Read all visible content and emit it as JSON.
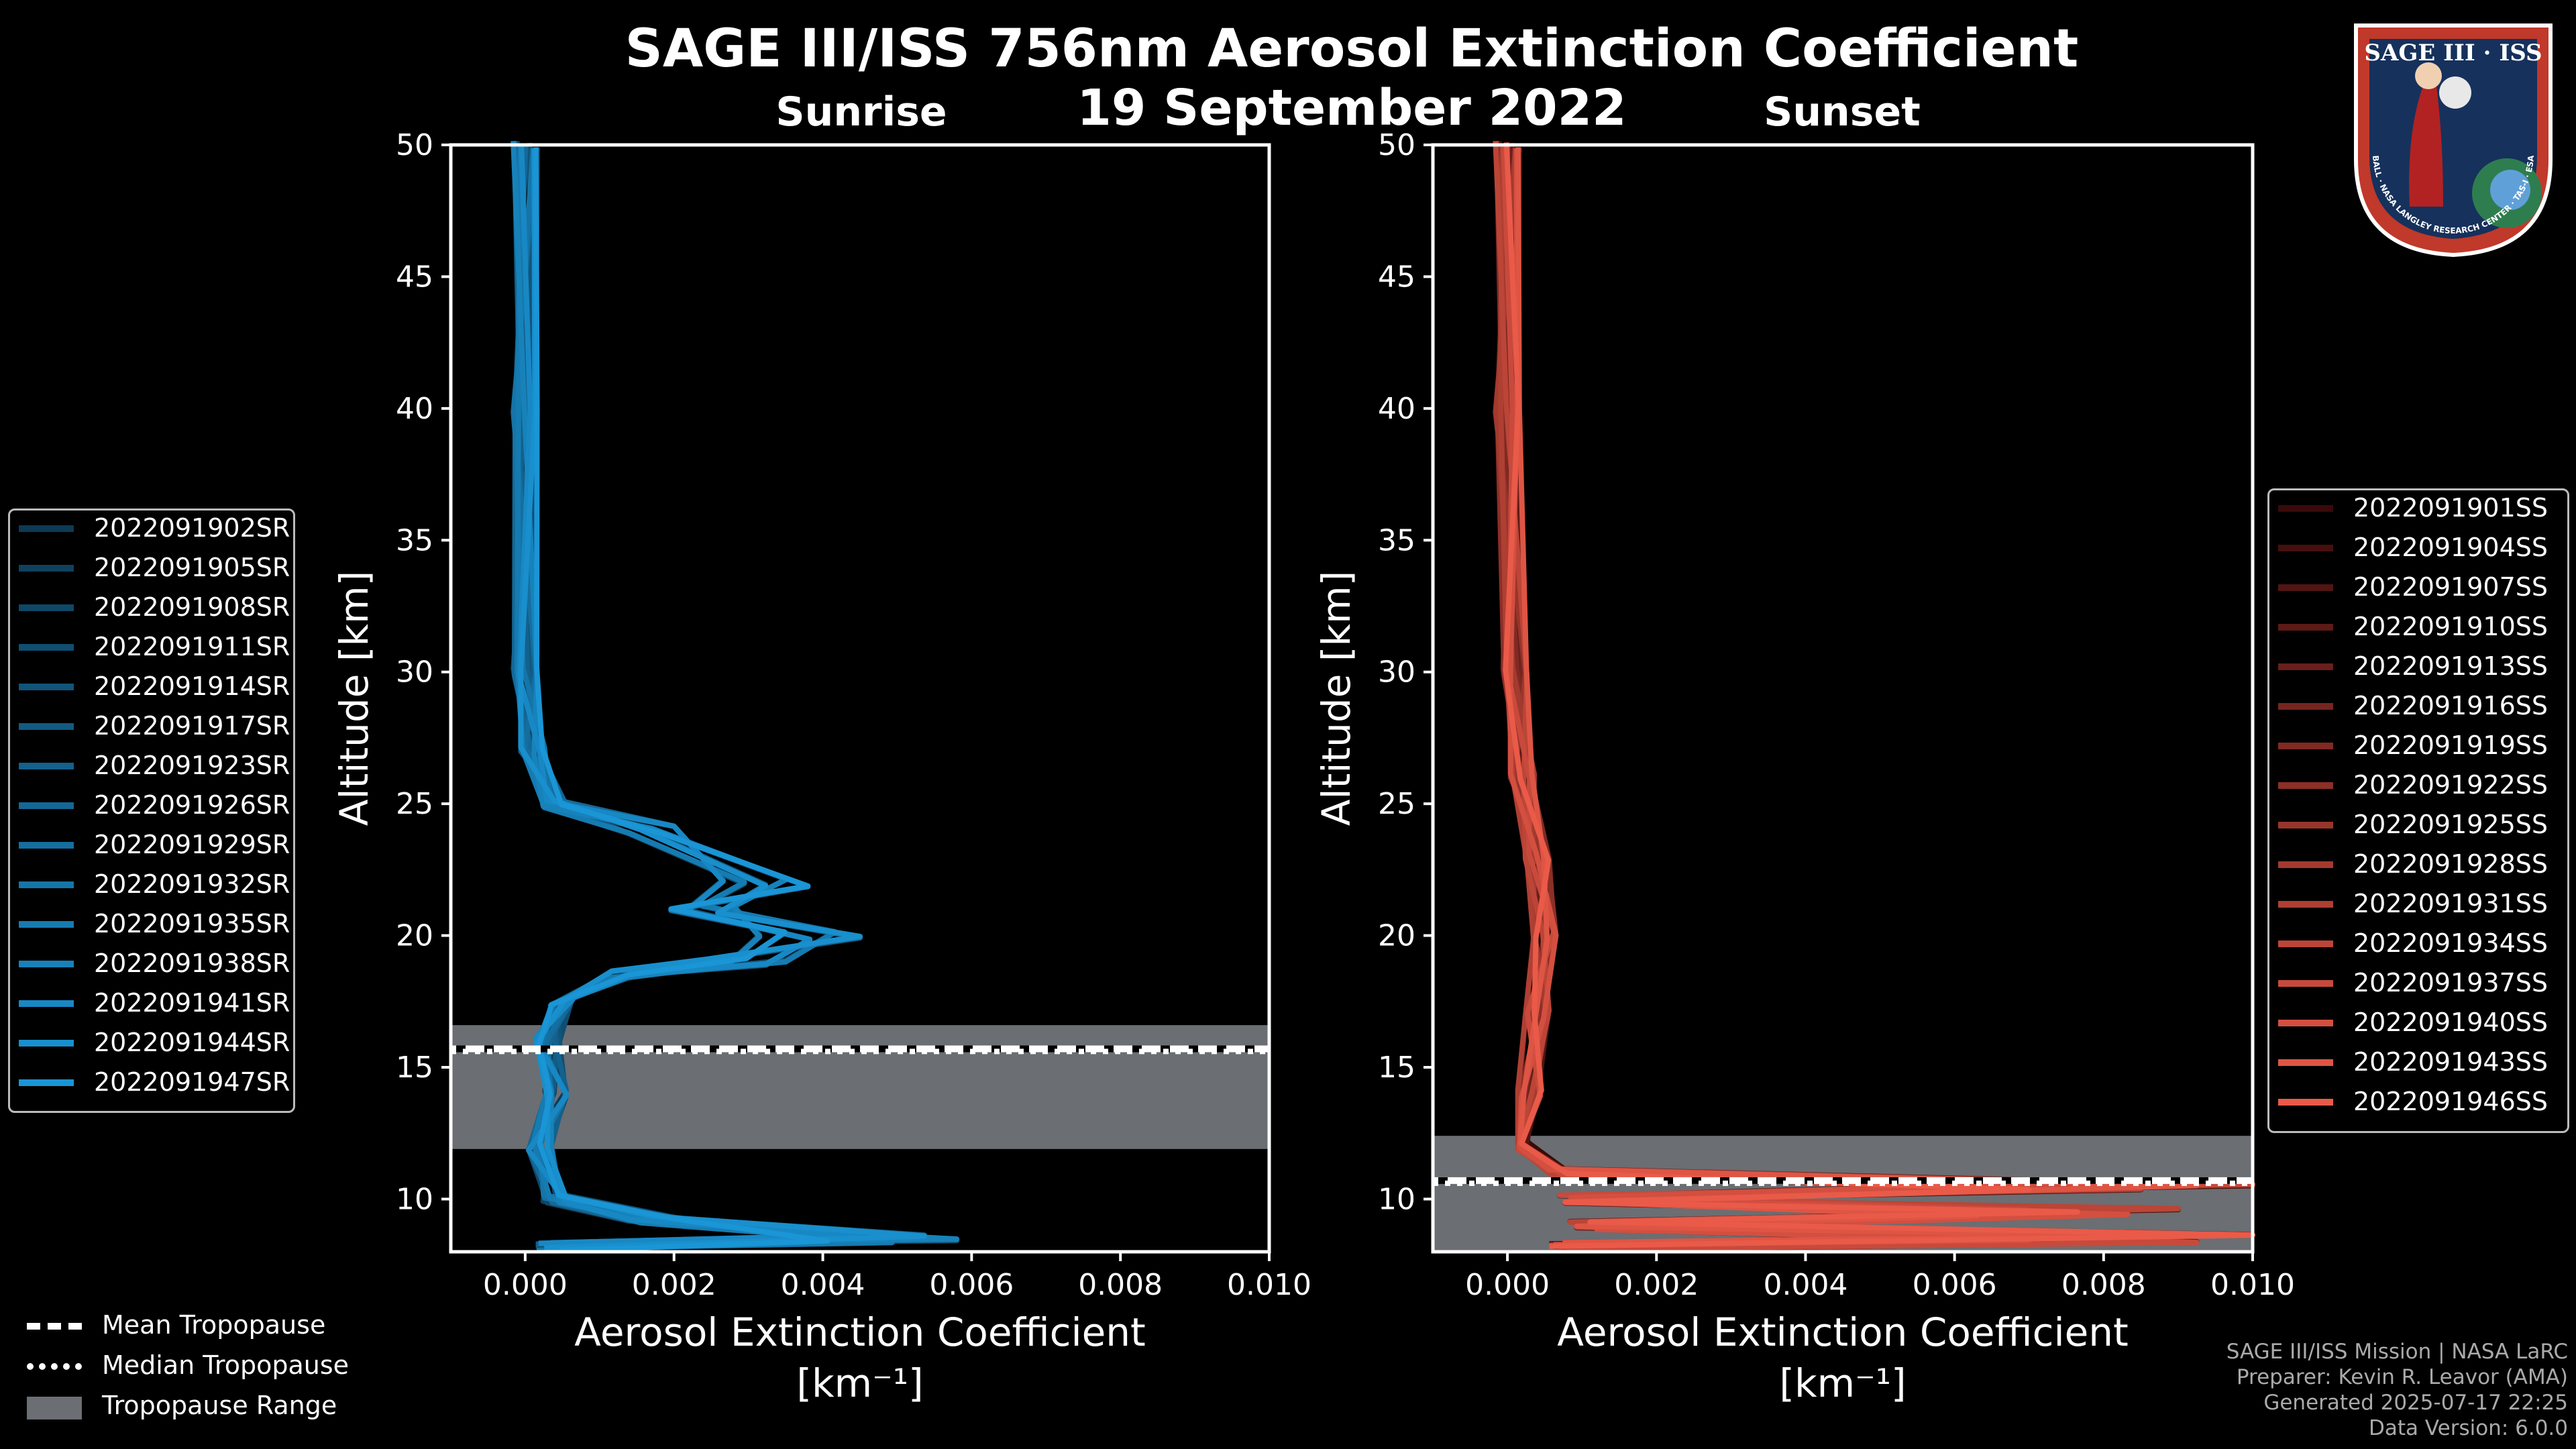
{
  "title": "SAGE III/ISS 756nm Aerosol Extinction Coefficient",
  "date": "19 September 2022",
  "panels": [
    {
      "name": "Sunrise",
      "color": "#1e90d0"
    },
    {
      "name": "Sunset",
      "color": "#e85a48"
    }
  ],
  "axis_labels": {
    "y": "Altitude [km]",
    "x": "Aerosol Extinction Coefficient",
    "x_unit": "[km⁻¹]"
  },
  "chart_data": [
    {
      "type": "line",
      "panel": "Sunrise",
      "xlim": [
        -0.001,
        0.01
      ],
      "ylim": [
        8,
        50
      ],
      "xticks": [
        0.0,
        0.002,
        0.004,
        0.006,
        0.008,
        0.01
      ],
      "xticklabels": [
        "0.000",
        "0.002",
        "0.004",
        "0.006",
        "0.008",
        "0.010"
      ],
      "yticks": [
        10,
        15,
        20,
        25,
        30,
        35,
        40,
        45,
        50
      ],
      "tropopause": {
        "mean": 15.7,
        "median": 15.6,
        "range": [
          11.9,
          16.6
        ]
      },
      "series": [
        {
          "name": "2022091902SR"
        },
        {
          "name": "2022091905SR"
        },
        {
          "name": "2022091908SR"
        },
        {
          "name": "2022091911SR"
        },
        {
          "name": "2022091914SR"
        },
        {
          "name": "2022091917SR"
        },
        {
          "name": "2022091923SR"
        },
        {
          "name": "2022091926SR"
        },
        {
          "name": "2022091929SR"
        },
        {
          "name": "2022091932SR"
        },
        {
          "name": "2022091935SR"
        },
        {
          "name": "2022091938SR"
        },
        {
          "name": "2022091941SR"
        },
        {
          "name": "2022091944SR"
        },
        {
          "name": "2022091947SR"
        }
      ],
      "profile": [
        [
          0.0,
          50
        ],
        [
          0.0,
          40
        ],
        [
          0.0,
          30
        ],
        [
          0.0001,
          27
        ],
        [
          0.0004,
          25
        ],
        [
          0.002,
          24
        ],
        [
          0.0038,
          22
        ],
        [
          0.0028,
          21
        ],
        [
          0.0045,
          20
        ],
        [
          0.0035,
          19
        ],
        [
          0.0015,
          18.5
        ],
        [
          0.0005,
          17.5
        ],
        [
          0.0003,
          16
        ],
        [
          0.0004,
          14
        ],
        [
          0.0002,
          12
        ],
        [
          0.0004,
          10
        ],
        [
          0.002,
          9.2
        ],
        [
          0.0058,
          8.5
        ],
        [
          0.0003,
          8.2
        ]
      ]
    },
    {
      "type": "line",
      "panel": "Sunset",
      "xlim": [
        -0.001,
        0.01
      ],
      "ylim": [
        8,
        50
      ],
      "xticks": [
        0.0,
        0.002,
        0.004,
        0.006,
        0.008,
        0.01
      ],
      "xticklabels": [
        "0.000",
        "0.002",
        "0.004",
        "0.006",
        "0.008",
        "0.010"
      ],
      "yticks": [
        10,
        15,
        20,
        25,
        30,
        35,
        40,
        45,
        50
      ],
      "tropopause": {
        "mean": 10.7,
        "median": 10.6,
        "range": [
          8.0,
          12.4
        ]
      },
      "series": [
        {
          "name": "2022091901SS"
        },
        {
          "name": "2022091904SS"
        },
        {
          "name": "2022091907SS"
        },
        {
          "name": "2022091910SS"
        },
        {
          "name": "2022091913SS"
        },
        {
          "name": "2022091916SS"
        },
        {
          "name": "2022091919SS"
        },
        {
          "name": "2022091922SS"
        },
        {
          "name": "2022091925SS"
        },
        {
          "name": "2022091928SS"
        },
        {
          "name": "2022091931SS"
        },
        {
          "name": "2022091934SS"
        },
        {
          "name": "2022091937SS"
        },
        {
          "name": "2022091940SS"
        },
        {
          "name": "2022091943SS"
        },
        {
          "name": "2022091946SS"
        }
      ],
      "profile": [
        [
          0.0,
          50
        ],
        [
          0.0,
          40
        ],
        [
          0.0001,
          30
        ],
        [
          0.0002,
          26
        ],
        [
          0.0004,
          23
        ],
        [
          0.0005,
          20
        ],
        [
          0.0004,
          17
        ],
        [
          0.0003,
          14
        ],
        [
          0.0003,
          12
        ],
        [
          0.0008,
          11
        ],
        [
          0.01,
          10.5
        ],
        [
          0.001,
          10
        ],
        [
          0.009,
          9.5
        ],
        [
          0.0012,
          9
        ],
        [
          0.01,
          8.5
        ],
        [
          0.0008,
          8.2
        ]
      ]
    }
  ],
  "tropopause_legend": [
    "Mean Tropopause",
    "Median Tropopause",
    "Tropopause Range"
  ],
  "footer": [
    "SAGE III/ISS Mission | NASA LaRC",
    "Preparer: Kevin R. Leavor (AMA)",
    "Generated 2025-07-17 22:25",
    "Data Version: 6.0.0"
  ],
  "logo": {
    "title": "SAGE III · ISS",
    "ring_text": "BALL · NASA LANGLEY RESEARCH CENTER · TAS-I · ESA"
  }
}
